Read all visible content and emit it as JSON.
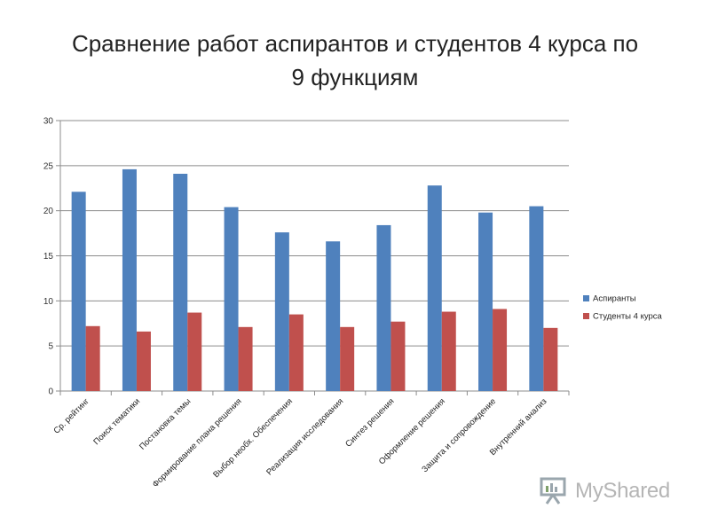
{
  "title_line1": "Сравнение работ аспирантов и студентов 4 курса по",
  "title_line2": "9 функциям",
  "watermark": {
    "text": "MyShared",
    "icon": "presentation-board-icon"
  },
  "colors": {
    "series1": "#4f81bd",
    "series2": "#c0504d",
    "grid": "#8c8c8c"
  },
  "chart_data": {
    "type": "bar",
    "categories": [
      "Ср. рейтинг",
      "Поиск тематики",
      "Постановка темы",
      "Формирование плана решения",
      "Выбор необх. Обеспечения",
      "Реализация исследования",
      "Синтез решения",
      "Оформление решения",
      "Защита и сопровождение",
      "Внутренний анализ"
    ],
    "series": [
      {
        "name": "Аспиранты",
        "values": [
          22.1,
          24.6,
          24.1,
          20.4,
          17.6,
          16.6,
          18.4,
          22.8,
          19.8,
          20.5
        ]
      },
      {
        "name": "Студенты 4 курса",
        "values": [
          7.2,
          6.6,
          8.7,
          7.1,
          8.5,
          7.1,
          7.7,
          8.8,
          9.1,
          7.0
        ]
      }
    ],
    "yticks": [
      "0",
      "5",
      "10",
      "15",
      "20",
      "25",
      "30"
    ],
    "ylim": [
      0,
      30
    ],
    "grid": true,
    "legend": "right"
  }
}
